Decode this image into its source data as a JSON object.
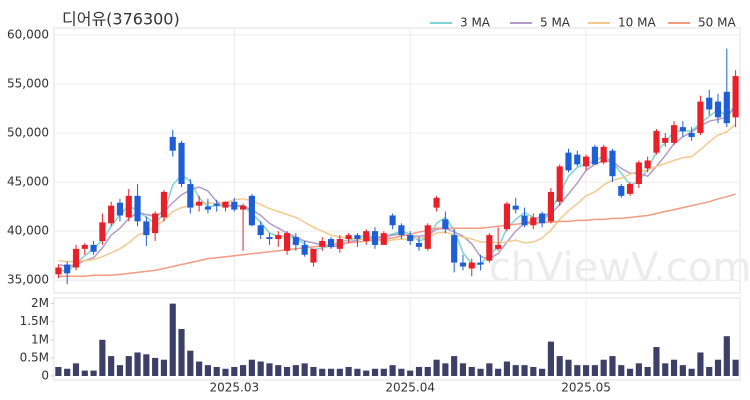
{
  "chart_data": {
    "type": "candlestick",
    "title": "디어유(376300)",
    "watermark": "chViewV.com",
    "up_color": "#e8202a",
    "down_color": "#1f5fd6",
    "volume_color": "#3d3f66",
    "grid": true,
    "legend": "top-right",
    "categories": [
      null,
      null,
      null,
      null,
      null,
      null,
      null,
      null,
      null,
      null,
      null,
      null,
      null,
      null,
      null,
      null,
      null,
      null,
      null,
      null,
      "2025.03",
      null,
      null,
      null,
      null,
      null,
      null,
      null,
      null,
      null,
      null,
      null,
      null,
      null,
      null,
      null,
      null,
      null,
      null,
      null,
      "2025.04",
      null,
      null,
      null,
      null,
      null,
      null,
      null,
      null,
      null,
      null,
      null,
      null,
      null,
      null,
      null,
      null,
      null,
      null,
      null,
      "2025.05",
      null,
      null,
      null,
      null,
      null,
      null,
      null,
      null,
      null,
      null,
      null,
      null,
      null,
      null,
      null,
      null,
      null
    ],
    "open": [
      35600,
      36600,
      36300,
      38200,
      38600,
      39000,
      40800,
      42900,
      41400,
      43600,
      41000,
      39800,
      41400,
      49600,
      49000,
      44800,
      42600,
      42500,
      42800,
      42400,
      43000,
      42200,
      43600,
      40600,
      39400,
      39200,
      38000,
      39400,
      38600,
      36800,
      38400,
      39200,
      38200,
      39200,
      39600,
      39000,
      40000,
      38600,
      41600,
      40600,
      39600,
      38800,
      38200,
      42400,
      41200,
      39600,
      36800,
      36200,
      36800,
      37000,
      38200,
      40200,
      42600,
      41600,
      40600,
      41800,
      41000,
      43000,
      48000,
      47800,
      46600,
      48600,
      47000,
      48200,
      44600,
      43800,
      44800,
      46400,
      48000,
      49000,
      49000,
      50600,
      50000,
      50000,
      53600,
      53200,
      54200,
      51600
    ],
    "high": [
      36600,
      36900,
      38600,
      38800,
      39000,
      41800,
      43000,
      43300,
      44300,
      44800,
      41500,
      42000,
      44200,
      50300,
      49200,
      45300,
      43600,
      43300,
      43200,
      43000,
      43400,
      42800,
      43800,
      41000,
      39800,
      40000,
      40000,
      39800,
      39000,
      38200,
      39400,
      39400,
      39600,
      39800,
      39800,
      40200,
      40400,
      40000,
      41800,
      40800,
      40000,
      39400,
      40800,
      43600,
      42000,
      40200,
      37600,
      37200,
      37600,
      39800,
      40400,
      43000,
      43400,
      42400,
      41800,
      42000,
      44400,
      46800,
      48400,
      48200,
      47800,
      48800,
      48800,
      48400,
      44800,
      45000,
      47200,
      47600,
      50400,
      50000,
      51200,
      51200,
      50600,
      53800,
      54400,
      54000,
      58600,
      56400
    ],
    "low": [
      35200,
      34600,
      36000,
      37600,
      37600,
      38600,
      40500,
      41000,
      41000,
      40500,
      38500,
      39000,
      41000,
      47600,
      44500,
      41800,
      42000,
      41800,
      42000,
      42000,
      42000,
      38000,
      40500,
      39200,
      38600,
      38400,
      37600,
      38000,
      37400,
      36400,
      38000,
      38200,
      37800,
      38800,
      38400,
      38600,
      38200,
      38600,
      40200,
      39200,
      38600,
      38000,
      38000,
      42000,
      39800,
      35800,
      36000,
      35400,
      36000,
      36800,
      38000,
      40000,
      41800,
      40400,
      40200,
      40400,
      40800,
      42600,
      46000,
      46600,
      46200,
      46800,
      46800,
      45000,
      43400,
      43600,
      44400,
      46000,
      47800,
      48600,
      48800,
      49600,
      49200,
      49800,
      51800,
      51000,
      50600,
      50600
    ],
    "close": [
      36300,
      35700,
      38200,
      38600,
      37900,
      40900,
      42600,
      41600,
      43600,
      41000,
      39600,
      41800,
      44000,
      48200,
      44800,
      42400,
      43000,
      42200,
      42600,
      43000,
      42200,
      42600,
      40600,
      39600,
      39200,
      39600,
      39800,
      38600,
      37600,
      38200,
      39000,
      38400,
      39200,
      39600,
      39200,
      40000,
      38600,
      39800,
      40600,
      39600,
      39000,
      38400,
      40600,
      43400,
      40200,
      36800,
      36400,
      36800,
      36600,
      39600,
      38600,
      42800,
      42200,
      40600,
      41400,
      40800,
      44000,
      46600,
      46200,
      46800,
      47600,
      46800,
      48600,
      45600,
      43600,
      44800,
      47000,
      47200,
      50200,
      49500,
      50800,
      50200,
      49600,
      53200,
      52400,
      51600,
      51000,
      55800
    ],
    "volume": [
      250000,
      200000,
      350000,
      150000,
      150000,
      1000000,
      550000,
      300000,
      550000,
      650000,
      600000,
      500000,
      450000,
      2000000,
      1300000,
      700000,
      400000,
      300000,
      250000,
      200000,
      250000,
      300000,
      450000,
      400000,
      350000,
      300000,
      250000,
      300000,
      350000,
      250000,
      200000,
      200000,
      200000,
      250000,
      200000,
      150000,
      200000,
      200000,
      300000,
      200000,
      150000,
      250000,
      250000,
      450000,
      350000,
      550000,
      350000,
      250000,
      200000,
      350000,
      200000,
      400000,
      300000,
      300000,
      250000,
      200000,
      950000,
      550000,
      450000,
      300000,
      300000,
      300000,
      450000,
      550000,
      300000,
      200000,
      350000,
      250000,
      800000,
      350000,
      450000,
      300000,
      200000,
      650000,
      250000,
      450000,
      1100000,
      450000
    ],
    "series": [
      {
        "name": "3 MA",
        "color": "#7fd3d3",
        "values": [
          36000,
          35900,
          36700,
          37500,
          38200,
          39100,
          40500,
          41700,
          42600,
          42100,
          41400,
          40800,
          41800,
          44700,
          45700,
          45100,
          43400,
          42500,
          42600,
          42600,
          42600,
          42600,
          41800,
          40900,
          39800,
          39500,
          39500,
          39300,
          38700,
          38100,
          38300,
          38500,
          38900,
          39100,
          39300,
          39600,
          39300,
          39500,
          39700,
          40000,
          39700,
          39000,
          39300,
          40800,
          41400,
          40100,
          37800,
          36700,
          36600,
          37700,
          38300,
          40300,
          41200,
          41900,
          41400,
          40900,
          42100,
          43800,
          45600,
          46500,
          46900,
          47100,
          47700,
          47000,
          45900,
          44700,
          45100,
          46300,
          48100,
          49000,
          50200,
          50200,
          50200,
          51000,
          51700,
          52400,
          51700,
          52800
        ]
      },
      {
        "name": "5 MA",
        "color": "#b49bc9",
        "values": [
          36600,
          36400,
          36600,
          37000,
          37300,
          38300,
          39600,
          40300,
          41300,
          41900,
          41700,
          41500,
          42000,
          42900,
          43700,
          44200,
          44500,
          44100,
          43000,
          42600,
          42600,
          42500,
          42200,
          41600,
          40800,
          40300,
          39800,
          39400,
          39000,
          38800,
          38600,
          38400,
          38500,
          38900,
          39100,
          39300,
          39300,
          39400,
          39600,
          39700,
          39500,
          39500,
          39600,
          40200,
          40300,
          39900,
          39500,
          38700,
          37400,
          37200,
          37700,
          38900,
          40000,
          40800,
          41100,
          41600,
          41800,
          42700,
          43800,
          44900,
          46200,
          46800,
          47200,
          47100,
          46400,
          45900,
          45900,
          45600,
          46600,
          47700,
          48900,
          49600,
          50100,
          50700,
          51200,
          51400,
          51600,
          52800
        ]
      },
      {
        "name": "10 MA",
        "color": "#f2c98f",
        "values": [
          37000,
          36900,
          36900,
          37000,
          37100,
          37400,
          37800,
          38200,
          38800,
          39600,
          39900,
          40500,
          41100,
          42000,
          42400,
          42600,
          42800,
          42900,
          42800,
          42900,
          43200,
          43300,
          43100,
          42700,
          42300,
          42000,
          41700,
          41400,
          40900,
          40400,
          40000,
          39600,
          39400,
          39300,
          39200,
          39200,
          39100,
          39000,
          39100,
          39200,
          39200,
          39300,
          39400,
          39800,
          39900,
          39600,
          39400,
          39200,
          38900,
          38900,
          38800,
          38900,
          39100,
          38800,
          38900,
          39300,
          40100,
          41200,
          42100,
          42800,
          43600,
          44000,
          44700,
          45200,
          45400,
          45800,
          46100,
          46200,
          46600,
          46900,
          47200,
          47500,
          47600,
          48300,
          49100,
          49800,
          50100,
          50900
        ]
      },
      {
        "name": "50 MA",
        "color": "#f29b83",
        "values": [
          35400,
          35400,
          35400,
          35400,
          35500,
          35500,
          35500,
          35600,
          35700,
          35800,
          35900,
          36000,
          36200,
          36400,
          36600,
          36800,
          37000,
          37200,
          37300,
          37400,
          37500,
          37600,
          37700,
          37800,
          37900,
          38000,
          38100,
          38200,
          38300,
          38400,
          38500,
          38600,
          38700,
          38800,
          38900,
          39000,
          39100,
          39200,
          39300,
          39500,
          39700,
          39900,
          40100,
          40300,
          40300,
          40300,
          40300,
          40300,
          40300,
          40400,
          40500,
          40600,
          40700,
          40800,
          40800,
          40900,
          40900,
          41000,
          41000,
          41100,
          41100,
          41200,
          41200,
          41300,
          41300,
          41400,
          41500,
          41600,
          41800,
          42000,
          42200,
          42400,
          42600,
          42800,
          43000,
          43300,
          43500,
          43800
        ]
      }
    ],
    "ylim": [
      33700,
      60700
    ],
    "yticks": [
      {
        "value": 35000,
        "label": "35,000"
      },
      {
        "value": 40000,
        "label": "40,000"
      },
      {
        "value": 45000,
        "label": "45,000"
      },
      {
        "value": 50000,
        "label": "50,000"
      },
      {
        "value": 55000,
        "label": "55,000"
      },
      {
        "value": 60000,
        "label": "60,000"
      }
    ],
    "y2lim": [
      0,
      2100000
    ],
    "y2ticks": [
      0,
      {
        "value": 500000,
        "label": "0.5M"
      },
      {
        "value": 1000000,
        "label": "1M"
      },
      {
        "value": 1500000,
        "label": "1.5M"
      },
      {
        "value": 2000000,
        "label": "2M"
      }
    ]
  }
}
